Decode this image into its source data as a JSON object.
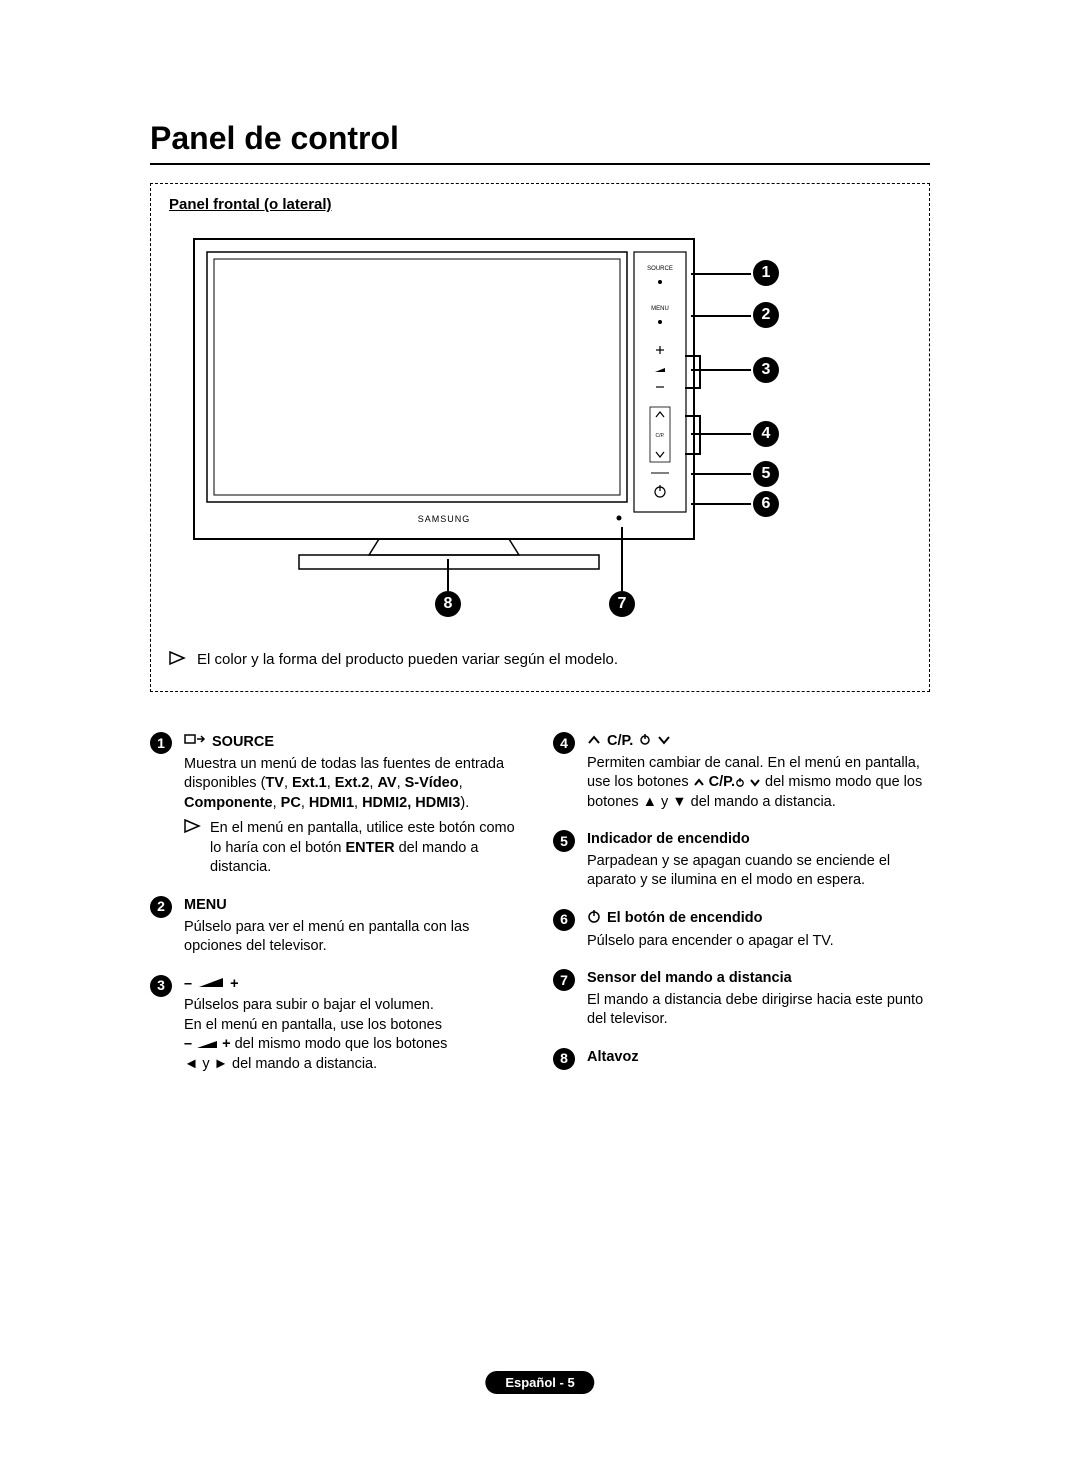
{
  "title": "Panel de control",
  "panel_label": "Panel frontal (o lateral)",
  "diagram_note": "El color y la forma del producto pueden variar según el modelo.",
  "tv_buttons": {
    "source": "SOURCE",
    "menu": "MENU",
    "cp": "C/P."
  },
  "brand": "SAMSUNG",
  "callouts": {
    "right": [
      "1",
      "2",
      "3",
      "4",
      "5",
      "6"
    ],
    "bottom_left": "8",
    "bottom_right": "7"
  },
  "left_items": [
    {
      "num": "1",
      "heading_icon": "source-io-icon",
      "heading": "SOURCE",
      "body_parts": [
        {
          "t": "Muestra un menú de todas las fuentes de entrada disponibles ("
        },
        {
          "b": "TV"
        },
        {
          "t": ", "
        },
        {
          "b": "Ext.1"
        },
        {
          "t": ", "
        },
        {
          "b": "Ext.2"
        },
        {
          "t": ", "
        },
        {
          "b": "AV"
        },
        {
          "t": ", "
        },
        {
          "b": "S-Vídeo"
        },
        {
          "t": ", "
        },
        {
          "b": "Componente"
        },
        {
          "t": ", "
        },
        {
          "b": "PC"
        },
        {
          "t": ", "
        },
        {
          "b": "HDMI1"
        },
        {
          "t": ", "
        },
        {
          "b": "HDMI2, HDMI3"
        },
        {
          "t": ")."
        }
      ],
      "sub_note": "En el menú en pantalla, utilice este botón como lo haría con el botón ENTER del mando a distancia.",
      "sub_note_bold": "ENTER"
    },
    {
      "num": "2",
      "heading": "MENU",
      "body": "Púlselo para ver el menú en pantalla con las opciones del televisor."
    },
    {
      "num": "3",
      "heading_icon": "vol-icon",
      "heading_prefix": "–",
      "heading_suffix": "+",
      "body": "Púlselos para subir o bajar el volumen.\nEn el menú en pantalla, use los botones – ▃ + del mismo modo que los botones ◄ y ► del mando a distancia."
    }
  ],
  "right_items": [
    {
      "num": "4",
      "heading_icon": "ch-icon",
      "heading": "C/P.⏻",
      "body": "Permiten cambiar de canal. En el menú en pantalla, use los botones ∧ C/P.⏻ ∨ del mismo modo que los botones ▲ y ▼ del mando a distancia."
    },
    {
      "num": "5",
      "heading": "Indicador de encendido",
      "body": "Parpadean y se apagan cuando se enciende el aparato y se ilumina en el modo en espera."
    },
    {
      "num": "6",
      "heading_icon": "power-icon",
      "heading": "El botón de encendido",
      "body": "Púlselo para encender o apagar el TV."
    },
    {
      "num": "7",
      "heading": "Sensor del mando a distancia",
      "body": "El mando a distancia debe dirigirse hacia este punto del televisor."
    },
    {
      "num": "8",
      "heading": "Altavoz",
      "body": ""
    }
  ],
  "footer": "Español - 5",
  "colors": {
    "text": "#000000",
    "bg": "#ffffff",
    "badge_bg": "#000000",
    "badge_fg": "#ffffff"
  }
}
